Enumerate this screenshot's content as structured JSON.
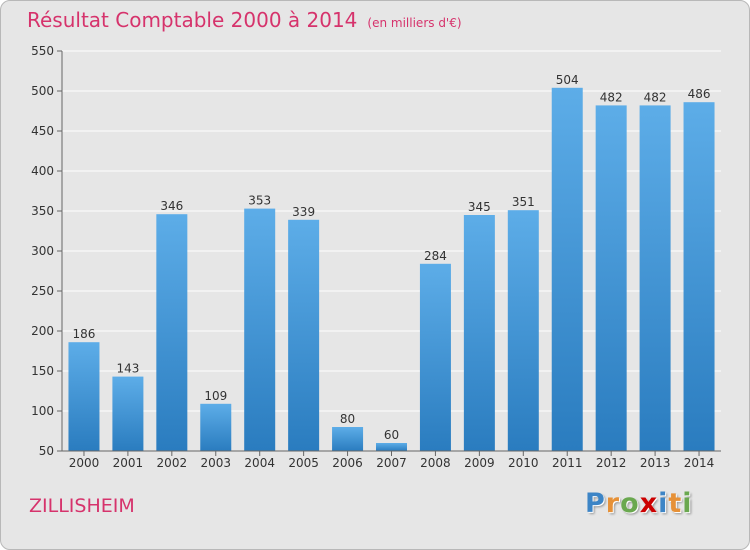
{
  "title": "Résultat Comptable 2000 à 2014",
  "unit": "(en milliers d'€)",
  "location": "ZILLISHEIM",
  "logo": [
    "P",
    "r",
    "o",
    "x",
    "i",
    "t",
    "i"
  ],
  "logo_colors": [
    "#3d85c6",
    "#e69138",
    "#6aa84f",
    "#cc0000",
    "#3d85c6",
    "#e69138",
    "#6aa84f"
  ],
  "colors": {
    "bar_top": "#5dade8",
    "bar_bottom": "#2a7cbf",
    "title": "#d6336c",
    "background": "#e6e6e6"
  },
  "chart_data": {
    "type": "bar",
    "title": "Résultat Comptable 2000 à 2014",
    "subtitle": "(en milliers d'€)",
    "xlabel": "",
    "ylabel": "",
    "categories": [
      "2000",
      "2001",
      "2002",
      "2003",
      "2004",
      "2005",
      "2006",
      "2007",
      "2008",
      "2009",
      "2010",
      "2011",
      "2012",
      "2013",
      "2014"
    ],
    "values": [
      186,
      143,
      346,
      109,
      353,
      339,
      80,
      60,
      284,
      345,
      351,
      504,
      482,
      482,
      486
    ],
    "ylim": [
      50,
      550
    ],
    "yticks": [
      50,
      100,
      150,
      200,
      250,
      300,
      350,
      400,
      450,
      500,
      550
    ],
    "grid": true
  }
}
